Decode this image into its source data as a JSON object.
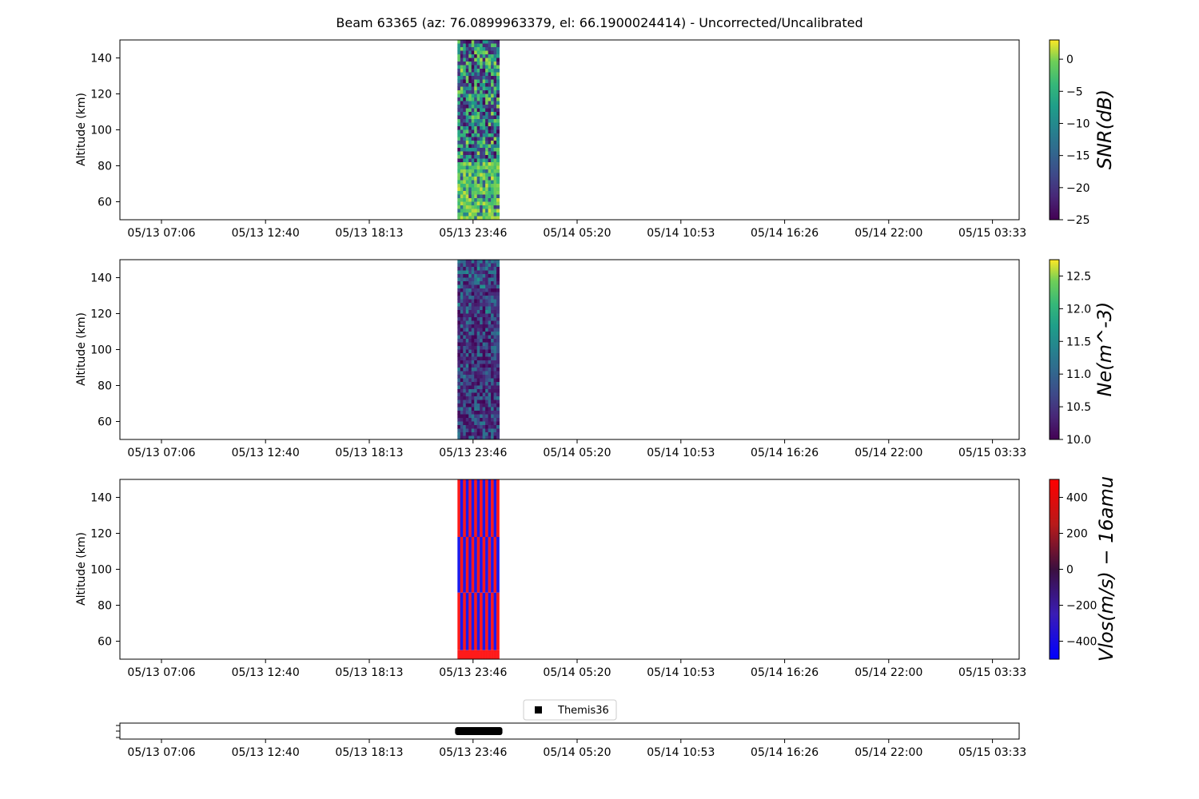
{
  "chart_data": {
    "type": "heatmap",
    "title": "Beam 63365 (az: 76.0899963379, el: 66.1900024414) - Uncorrected/Uncalibrated",
    "x_ticks": [
      "05/13 07:06",
      "05/13 12:40",
      "05/13 18:13",
      "05/13 23:46",
      "05/14 05:20",
      "05/14 10:53",
      "05/14 16:26",
      "05/14 22:00",
      "05/15 03:33"
    ],
    "data_time_range": [
      "05/13 22:56",
      "05/14 01:10"
    ],
    "panels": [
      {
        "name": "snr",
        "ylabel": "Altitude (km)",
        "ylim": [
          50,
          150
        ],
        "y_ticks": [
          60,
          80,
          100,
          120,
          140
        ],
        "colorbar": {
          "label": "SNR(dB)",
          "colormap": "viridis",
          "range": [
            -25,
            3
          ],
          "ticks": [
            0,
            -5,
            -10,
            -15,
            -20,
            -25
          ],
          "tick_labels": [
            "0",
            "−5",
            "−10",
            "−15",
            "−20",
            "−25"
          ]
        },
        "description_values": "high SNR (~ -3 to 0 dB) below ~82 km, mixed -25 to -5 dB above"
      },
      {
        "name": "ne",
        "ylabel": "Altitude (km)",
        "ylim": [
          50,
          150
        ],
        "y_ticks": [
          60,
          80,
          100,
          120,
          140
        ],
        "colorbar": {
          "label": "Ne(m^-3)",
          "colormap": "viridis",
          "range": [
            10.0,
            12.75
          ],
          "ticks": [
            12.5,
            12.0,
            11.5,
            11.0,
            10.5,
            10.0
          ],
          "tick_labels": [
            "12.5",
            "12.0",
            "11.5",
            "11.0",
            "10.5",
            "10.0"
          ]
        }
      },
      {
        "name": "vlos",
        "ylabel": "Altitude (km)",
        "ylim": [
          50,
          150
        ],
        "y_ticks": [
          60,
          80,
          100,
          120,
          140
        ],
        "colorbar": {
          "label": "Vlos(m/s) − 16amu",
          "colormap": "bwr",
          "range": [
            -500,
            500
          ],
          "ticks": [
            400,
            200,
            0,
            -200,
            -400
          ],
          "tick_labels": [
            "400",
            "200",
            "0",
            "−200",
            "−400"
          ]
        }
      }
    ],
    "legend": {
      "placement": "top-center",
      "entries": [
        "Themis36"
      ]
    },
    "grid": false
  }
}
